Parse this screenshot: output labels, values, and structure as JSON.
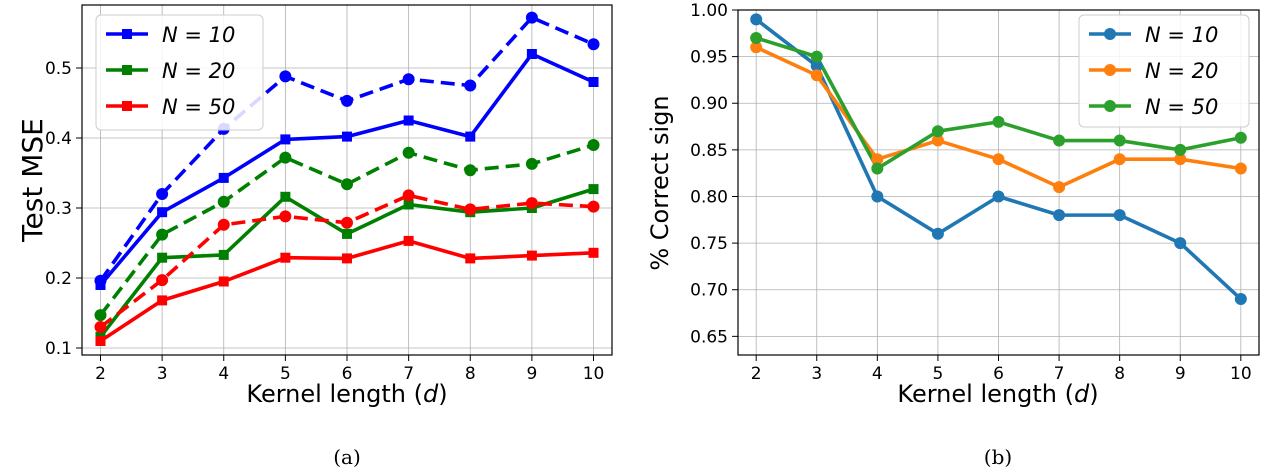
{
  "chart_data": [
    {
      "type": "line",
      "caption": "(a)",
      "xlabel": "Kernel length (d)",
      "ylabel": "Test MSE",
      "x": [
        2,
        3,
        4,
        5,
        6,
        7,
        8,
        9,
        10
      ],
      "xlim": [
        1.7,
        10.3
      ],
      "ylim": [
        0.09,
        0.59
      ],
      "yticks": [
        0.1,
        0.2,
        0.3,
        0.4,
        0.5
      ],
      "ytick_labels": [
        "0.1",
        "0.2",
        "0.3",
        "0.4",
        "0.5"
      ],
      "grid": true,
      "legend_position": "upper-left",
      "legend": [
        "N = 10",
        "N = 20",
        "N = 50"
      ],
      "series": [
        {
          "name": "N = 10",
          "color": "#0000ff",
          "linestyle": "solid",
          "marker": "square",
          "values": [
            0.19,
            0.294,
            0.343,
            0.398,
            0.402,
            0.425,
            0.402,
            0.52,
            0.48
          ]
        },
        {
          "name": "N = 20",
          "color": "#008000",
          "linestyle": "solid",
          "marker": "square",
          "values": [
            0.116,
            0.229,
            0.233,
            0.316,
            0.263,
            0.305,
            0.294,
            0.3,
            0.327
          ]
        },
        {
          "name": "N = 50",
          "color": "#ff0000",
          "linestyle": "solid",
          "marker": "square",
          "values": [
            0.11,
            0.168,
            0.195,
            0.229,
            0.228,
            0.253,
            0.228,
            0.232,
            0.236
          ]
        },
        {
          "name": "",
          "color": "#0000ff",
          "linestyle": "dashed",
          "marker": "circle",
          "values": [
            0.196,
            0.32,
            0.413,
            0.488,
            0.453,
            0.484,
            0.475,
            0.572,
            0.534
          ]
        },
        {
          "name": "",
          "color": "#008000",
          "linestyle": "dashed",
          "marker": "circle",
          "values": [
            0.147,
            0.262,
            0.309,
            0.372,
            0.334,
            0.379,
            0.354,
            0.363,
            0.39
          ]
        },
        {
          "name": "",
          "color": "#ff0000",
          "linestyle": "dashed",
          "marker": "circle",
          "values": [
            0.13,
            0.197,
            0.276,
            0.288,
            0.279,
            0.318,
            0.298,
            0.307,
            0.302
          ]
        }
      ]
    },
    {
      "type": "line",
      "caption": "(b)",
      "xlabel": "Kernel length (d)",
      "ylabel": "% Correct sign",
      "x": [
        2,
        3,
        4,
        5,
        6,
        7,
        8,
        9,
        10
      ],
      "xlim": [
        1.7,
        10.3
      ],
      "ylim": [
        0.63,
        1.0
      ],
      "yticks": [
        0.65,
        0.7,
        0.75,
        0.8,
        0.85,
        0.9,
        0.95,
        1.0
      ],
      "ytick_labels": [
        "0.65",
        "0.70",
        "0.75",
        "0.80",
        "0.85",
        "0.90",
        "0.95",
        "1.00"
      ],
      "grid": true,
      "legend_position": "upper-right",
      "legend": [
        "N = 10",
        "N = 20",
        "N = 50"
      ],
      "series": [
        {
          "name": "N = 10",
          "color": "#1f77b4",
          "linestyle": "solid",
          "marker": "circle",
          "values": [
            0.99,
            0.94,
            0.8,
            0.76,
            0.8,
            0.78,
            0.78,
            0.75,
            0.69
          ]
        },
        {
          "name": "N = 20",
          "color": "#ff7f0e",
          "linestyle": "solid",
          "marker": "circle",
          "values": [
            0.96,
            0.93,
            0.84,
            0.86,
            0.84,
            0.81,
            0.84,
            0.84,
            0.83
          ]
        },
        {
          "name": "N = 50",
          "color": "#2ca02c",
          "linestyle": "solid",
          "marker": "circle",
          "values": [
            0.97,
            0.95,
            0.83,
            0.87,
            0.88,
            0.86,
            0.86,
            0.85,
            0.863
          ]
        }
      ]
    }
  ]
}
